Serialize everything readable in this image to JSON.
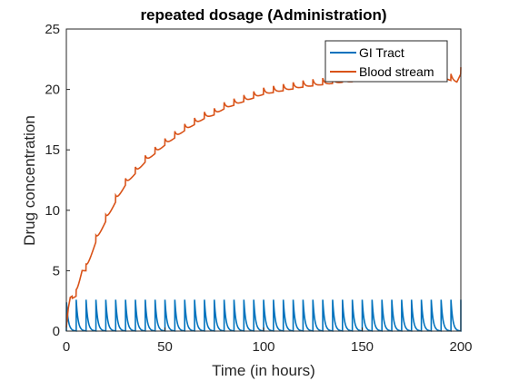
{
  "chart_data": {
    "type": "line",
    "title": "repeated dosage (Administration)",
    "xlabel": "Time (in hours)",
    "ylabel": "Drug concentration",
    "xlim": [
      0,
      200
    ],
    "ylim": [
      0,
      25
    ],
    "xticks": [
      0,
      50,
      100,
      150,
      200
    ],
    "yticks": [
      0,
      5,
      10,
      15,
      20,
      25
    ],
    "grid": false,
    "legend_position": "top-right",
    "dose_interval_hours": 5,
    "series": [
      {
        "name": "GI Tract",
        "color": "#0072bd",
        "x": [
          0,
          0.5,
          1,
          2,
          3,
          4,
          4.99,
          5,
          5.5,
          6,
          7,
          8,
          9,
          9.99,
          10,
          200
        ],
        "y": [
          2.6,
          1.45,
          0.85,
          0.3,
          0.12,
          0.05,
          0.02,
          2.6,
          1.45,
          0.85,
          0.3,
          0.12,
          0.05,
          0.02,
          2.6,
          2.6
        ],
        "pattern": "sawtooth repeating every 5 hours, peak 2.6, decays toward 0"
      },
      {
        "name": "Blood stream",
        "color": "#d95319",
        "x": [
          0,
          1,
          2,
          3,
          5,
          8,
          10,
          15,
          20,
          25,
          30,
          40,
          50,
          60,
          70,
          75,
          80,
          90,
          100,
          110,
          120,
          130,
          140,
          150,
          160,
          170,
          180,
          190,
          198,
          200
        ],
        "y": [
          0.3,
          1.9,
          2.8,
          2.9,
          3.1,
          5.2,
          5.2,
          7.6,
          9.3,
          10.9,
          12.3,
          14.2,
          15.6,
          16.8,
          17.8,
          18.1,
          18.6,
          19.2,
          19.8,
          20.1,
          20.4,
          20.6,
          20.8,
          20.9,
          21.0,
          21.1,
          21.1,
          21.2,
          20.8,
          21.5
        ],
        "pattern": "accumulating curve with small oscillations each dosing interval"
      }
    ]
  }
}
